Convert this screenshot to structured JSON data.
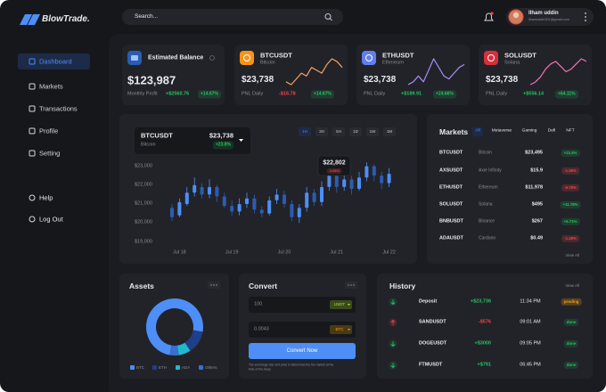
{
  "brand": "BlowTrade.",
  "search": "Search...",
  "user": {
    "name": "Ilham uddin",
    "email": "ilhamuddin301@gmail.com"
  },
  "nav": [
    "Dashboard",
    "Markets",
    "Transactions",
    "Profile",
    "Setting"
  ],
  "nav_bottom": [
    "Help",
    "Log Out"
  ],
  "balance": {
    "title": "Estimated Balance",
    "amount": "$123,987",
    "label": "Monthly Profit",
    "profit": "+$2560.76",
    "change": "+14.67%"
  },
  "tickers": [
    {
      "symbol": "BTCUSDT",
      "name": "Bitcoin",
      "price": "$23,738",
      "label": "PNL Daily",
      "pnl": "-$16.78",
      "change": "+14.67%",
      "color": "#f7931a",
      "line_color": "#f4a261",
      "spark": [
        4,
        3,
        5,
        7,
        6,
        9,
        8,
        7,
        10,
        12,
        11,
        9
      ]
    },
    {
      "symbol": "ETHUSDT",
      "name": "Ethereum",
      "price": "$23,738",
      "label": "PNL Daily",
      "pnl": "+$189.91",
      "change": "+24.66%",
      "color": "#627eea",
      "line_color": "#a78bfa",
      "spark": [
        3,
        4,
        6,
        4,
        8,
        12,
        9,
        6,
        5,
        7,
        9,
        10
      ]
    },
    {
      "symbol": "SOLUSDT",
      "name": "Solana",
      "price": "$23,738",
      "label": "PNL Daily",
      "pnl": "+$556.14",
      "change": "+64.11%",
      "color": "#d62f3a",
      "line_color": "#f472b6",
      "spark": [
        2,
        3,
        5,
        8,
        10,
        11,
        9,
        7,
        8,
        10,
        12,
        11
      ]
    }
  ],
  "chart_data": [
    {
      "type": "candlestick",
      "title": "BTCUSDT",
      "subtitle": "Bitcoin",
      "price": "$23,738",
      "change": "+23.8%",
      "timeframes": [
        "1H",
        "3H",
        "5H",
        "1D",
        "1W",
        "1M"
      ],
      "annotation": {
        "price": "$22,802",
        "change": "-1.66%"
      },
      "categories": [
        null,
        "Jul 18",
        null,
        null,
        null,
        null,
        null,
        null,
        "Jul 19",
        null,
        null,
        null,
        null,
        null,
        null,
        "Jul 20",
        null,
        null,
        null,
        null,
        null,
        null,
        "Jul 21",
        null,
        null,
        null,
        null,
        null,
        null,
        "Jul 22"
      ],
      "open": [
        20800,
        20400,
        21000,
        21600,
        21900,
        21500,
        21900,
        21400,
        20900,
        20600,
        21000,
        21300,
        20700,
        20500,
        21200,
        21500,
        21000,
        20300,
        20800,
        21600,
        21100,
        21900,
        22500,
        21900,
        22300,
        21800,
        22400,
        23000,
        22500,
        22100
      ],
      "close": [
        20300,
        21100,
        21600,
        22000,
        21500,
        21900,
        21400,
        20900,
        20600,
        21000,
        21300,
        20700,
        20500,
        21200,
        21500,
        21000,
        20300,
        20800,
        21600,
        21100,
        21900,
        22500,
        21900,
        22300,
        21800,
        22400,
        23000,
        22500,
        22100,
        22600
      ],
      "high": [
        21000,
        21300,
        21900,
        22400,
        22100,
        22300,
        22000,
        21600,
        21200,
        21300,
        21600,
        21500,
        20900,
        21400,
        21800,
        21700,
        21200,
        21000,
        21900,
        21800,
        22200,
        22800,
        22700,
        22600,
        22500,
        22700,
        23200,
        23100,
        22700,
        22900
      ],
      "low": [
        20100,
        20300,
        20900,
        21400,
        21300,
        21300,
        21100,
        20800,
        20400,
        20400,
        20800,
        20500,
        20300,
        20400,
        21000,
        20800,
        20100,
        20000,
        20600,
        20900,
        20900,
        21700,
        21600,
        21700,
        21500,
        21700,
        22200,
        22200,
        21800,
        21900
      ],
      "up_color": "#4d8ef7",
      "down_color": "#2c5cb0",
      "ylim": [
        18600,
        23400
      ],
      "yticks": [
        {
          "value": 23000,
          "label": "$23,000"
        },
        {
          "value": 22000,
          "label": "$22,000"
        },
        {
          "value": 21000,
          "label": "$21,000"
        },
        {
          "value": 20000,
          "label": "$20,000"
        },
        {
          "value": 19000,
          "label": "$19,000"
        }
      ]
    },
    {
      "type": "pie",
      "title": "Assets",
      "donut": true,
      "categories": [
        "BTC",
        "ETH",
        "ADA",
        "Others"
      ],
      "values": [
        75,
        13,
        7,
        5
      ],
      "colors": [
        "#4d8ef7",
        "#1f3f86",
        "#22b8cf",
        "#3a6fd0"
      ]
    }
  ],
  "markets": {
    "title": "Markets",
    "tabs": [
      "All",
      "Metaverse",
      "Gaming",
      "Defi",
      "NFT"
    ],
    "rows": [
      [
        "BTCUSDT",
        "Bitcoin",
        "$23,495",
        "+23.4%"
      ],
      [
        "AXSUSDT",
        "Axie Infinity",
        "$15.9",
        "-1.56%"
      ],
      [
        "ETHUSDT",
        "Ethereum",
        "$11,978",
        "-6.78%"
      ],
      [
        "SOLUSDT",
        "Solana",
        "$495",
        "+11.78%"
      ],
      [
        "BNBUSDT",
        "Binance",
        "$267",
        "+6.71%"
      ],
      [
        "ADAUSDT",
        "Cardano",
        "$0.49",
        "-1.49%"
      ]
    ],
    "view_all": "View All"
  },
  "convert": {
    "title": "Convert",
    "from_amount": "100",
    "from_currency": "USDT",
    "to_amount": "0.0043",
    "to_currency": "BTC",
    "button": "Convert Now",
    "note": [
      "The exchange rate and price is determined by the market at the",
      "time of the swap"
    ]
  },
  "history": {
    "title": "History",
    "view_all": "View All",
    "rows": [
      [
        "Deposit",
        "+$23,736",
        "11:34 PM",
        "pending"
      ],
      [
        "SANDUSDT",
        "-$576",
        "09:01 AM",
        "done"
      ],
      [
        "DOGEUSDT",
        "+$3000",
        "09:05 PM",
        "done"
      ],
      [
        "FTMUSDT",
        "+$791",
        "06:45 PM",
        "done"
      ]
    ]
  }
}
